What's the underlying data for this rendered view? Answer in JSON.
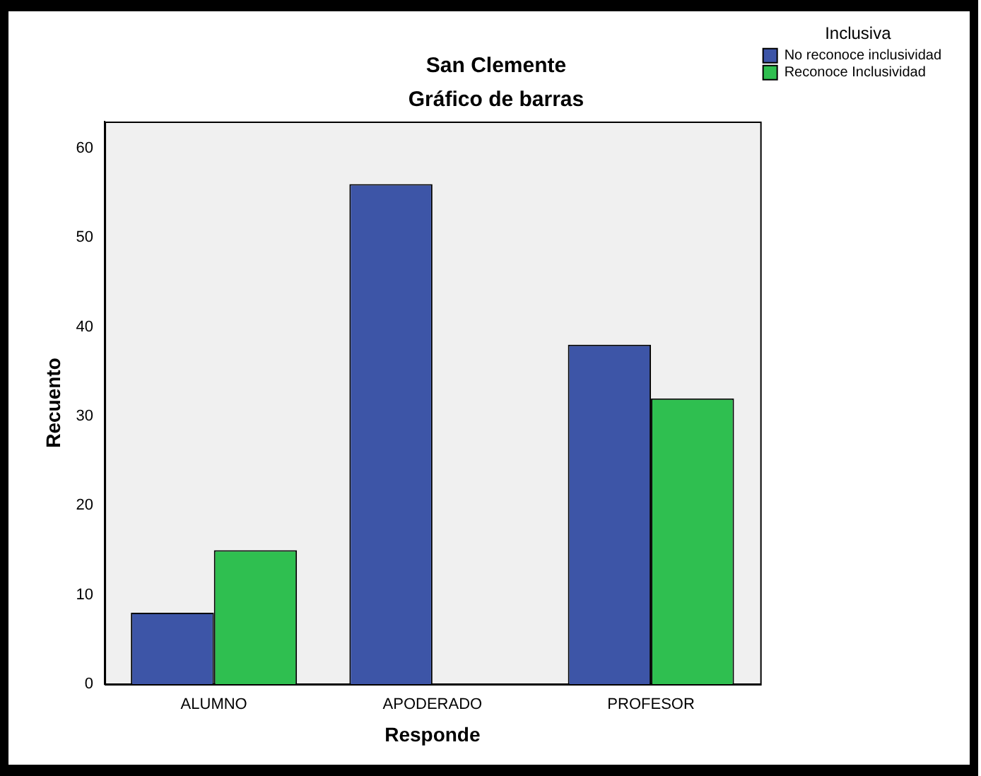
{
  "chart_data": {
    "type": "bar",
    "title": "San Clemente",
    "subtitle": "Gráfico de barras",
    "xlabel": "Responde",
    "ylabel": "Recuento",
    "legend_title": "Inclusiva",
    "categories": [
      "ALUMNO",
      "APODERADO",
      "PROFESOR"
    ],
    "series": [
      {
        "name": "No reconoce inclusividad",
        "color": "#3d55a7",
        "values": [
          8,
          56,
          38
        ]
      },
      {
        "name": "Reconoce Inclusividad",
        "color": "#2fbf50",
        "values": [
          15,
          null,
          32
        ]
      }
    ],
    "ylim": [
      0,
      63
    ],
    "yticks": [
      0,
      10,
      20,
      30,
      40,
      50,
      60
    ],
    "grid": false,
    "legend": "top right"
  }
}
